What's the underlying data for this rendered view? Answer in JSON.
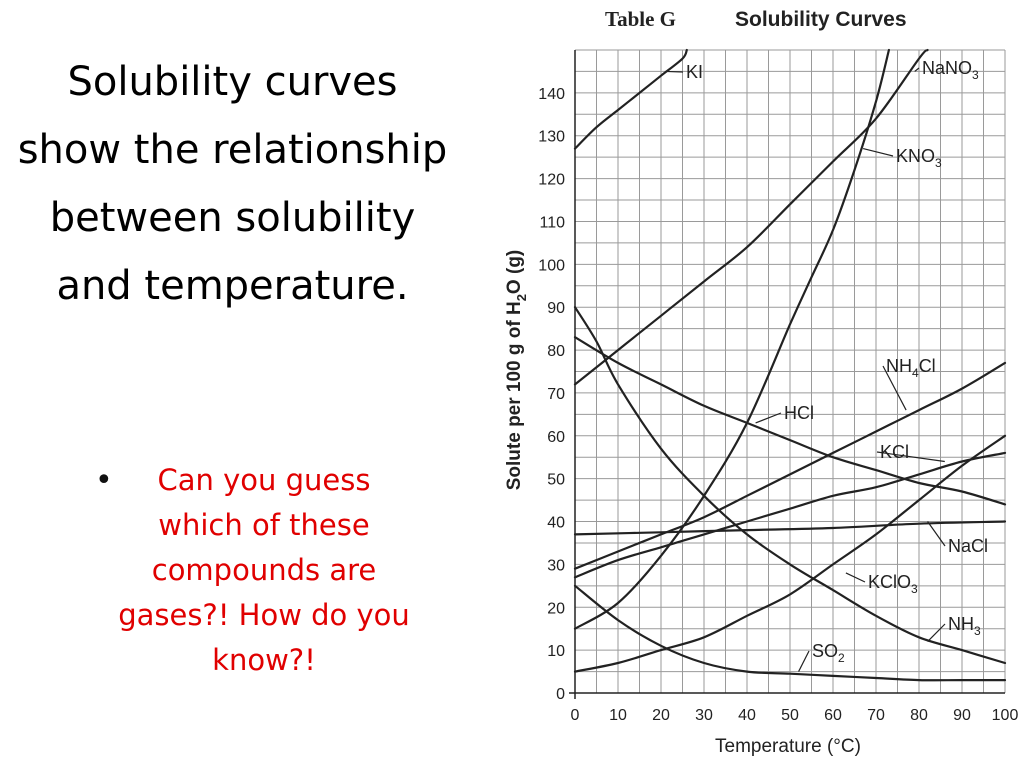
{
  "slide": {
    "title": "Solubility curves show the relationship between solubility and temperature.",
    "bullet": "Can you guess which of these compounds are gases?! How do you know?!"
  },
  "colors": {
    "title": "#000000",
    "bullet": "#e00000",
    "curves": "#222222",
    "grid": "#9a9a9a"
  },
  "chart_data": {
    "type": "line",
    "title_prefix": "Table G",
    "title": "Solubility Curves",
    "xlabel": "Temperature (°C)",
    "ylabel": "Solute per 100 g of H2O (g)",
    "xlim": [
      0,
      100
    ],
    "ylim": [
      0,
      150
    ],
    "grid": true,
    "x_ticks": [
      0,
      10,
      20,
      30,
      40,
      50,
      60,
      70,
      80,
      90,
      100
    ],
    "y_ticks": [
      0,
      10,
      20,
      30,
      40,
      50,
      60,
      70,
      80,
      90,
      100,
      110,
      120,
      130,
      140
    ],
    "series": [
      {
        "name": "KI",
        "label": "KI",
        "points": [
          [
            0,
            127
          ],
          [
            5,
            132
          ],
          [
            10,
            136
          ],
          [
            15,
            140
          ],
          [
            20,
            144
          ],
          [
            25,
            148
          ],
          [
            26,
            150
          ]
        ]
      },
      {
        "name": "NaNO3",
        "label": "NaNO",
        "sub": "3",
        "points": [
          [
            0,
            72
          ],
          [
            10,
            80
          ],
          [
            20,
            88
          ],
          [
            30,
            96
          ],
          [
            40,
            104
          ],
          [
            50,
            114
          ],
          [
            60,
            124
          ],
          [
            70,
            134
          ],
          [
            80,
            148
          ],
          [
            82,
            150
          ]
        ]
      },
      {
        "name": "KNO3",
        "label": "KNO",
        "sub": "3",
        "points": [
          [
            0,
            15
          ],
          [
            10,
            21
          ],
          [
            20,
            32
          ],
          [
            30,
            46
          ],
          [
            40,
            63
          ],
          [
            50,
            86
          ],
          [
            55,
            97
          ],
          [
            60,
            108
          ],
          [
            65,
            122
          ],
          [
            70,
            138
          ],
          [
            73,
            150
          ]
        ]
      },
      {
        "name": "NH4Cl",
        "label": "NH",
        "sub": "4",
        "label_after": "Cl",
        "points": [
          [
            0,
            29
          ],
          [
            10,
            33
          ],
          [
            20,
            37
          ],
          [
            30,
            41
          ],
          [
            40,
            46
          ],
          [
            50,
            51
          ],
          [
            60,
            56
          ],
          [
            70,
            61
          ],
          [
            80,
            66
          ],
          [
            90,
            71
          ],
          [
            100,
            77
          ]
        ]
      },
      {
        "name": "HCl",
        "label": "HCl",
        "points": [
          [
            0,
            83
          ],
          [
            10,
            77
          ],
          [
            20,
            72
          ],
          [
            30,
            67
          ],
          [
            40,
            63
          ],
          [
            50,
            59
          ],
          [
            60,
            55
          ],
          [
            70,
            52
          ],
          [
            80,
            49
          ],
          [
            90,
            47
          ],
          [
            100,
            44
          ]
        ]
      },
      {
        "name": "KCl",
        "label": "KCl",
        "points": [
          [
            0,
            27
          ],
          [
            10,
            31
          ],
          [
            20,
            34
          ],
          [
            30,
            37
          ],
          [
            40,
            40
          ],
          [
            50,
            43
          ],
          [
            60,
            46
          ],
          [
            70,
            48
          ],
          [
            80,
            51
          ],
          [
            90,
            54
          ],
          [
            100,
            56
          ]
        ]
      },
      {
        "name": "NaCl",
        "label": "NaCl",
        "points": [
          [
            0,
            37
          ],
          [
            20,
            37.5
          ],
          [
            40,
            38
          ],
          [
            60,
            38.5
          ],
          [
            80,
            39.5
          ],
          [
            100,
            40
          ]
        ]
      },
      {
        "name": "KClO3",
        "label": "KClO",
        "sub": "3",
        "points": [
          [
            0,
            5
          ],
          [
            10,
            7
          ],
          [
            20,
            10
          ],
          [
            30,
            13
          ],
          [
            40,
            18
          ],
          [
            50,
            23
          ],
          [
            60,
            30
          ],
          [
            70,
            37
          ],
          [
            80,
            45
          ],
          [
            90,
            53
          ],
          [
            100,
            60
          ]
        ]
      },
      {
        "name": "NH3",
        "label": "NH",
        "sub": "3",
        "points": [
          [
            0,
            90
          ],
          [
            5,
            82
          ],
          [
            10,
            72
          ],
          [
            20,
            57
          ],
          [
            30,
            46
          ],
          [
            40,
            37
          ],
          [
            50,
            30
          ],
          [
            60,
            24
          ],
          [
            70,
            18
          ],
          [
            80,
            13
          ],
          [
            90,
            10
          ],
          [
            100,
            7
          ]
        ]
      },
      {
        "name": "SO2",
        "label": "SO",
        "sub": "2",
        "points": [
          [
            0,
            25
          ],
          [
            10,
            17
          ],
          [
            20,
            11
          ],
          [
            30,
            7
          ],
          [
            40,
            5
          ],
          [
            50,
            4.5
          ],
          [
            60,
            4
          ],
          [
            70,
            3.5
          ],
          [
            80,
            3
          ],
          [
            90,
            3
          ],
          [
            100,
            3
          ]
        ]
      }
    ]
  }
}
